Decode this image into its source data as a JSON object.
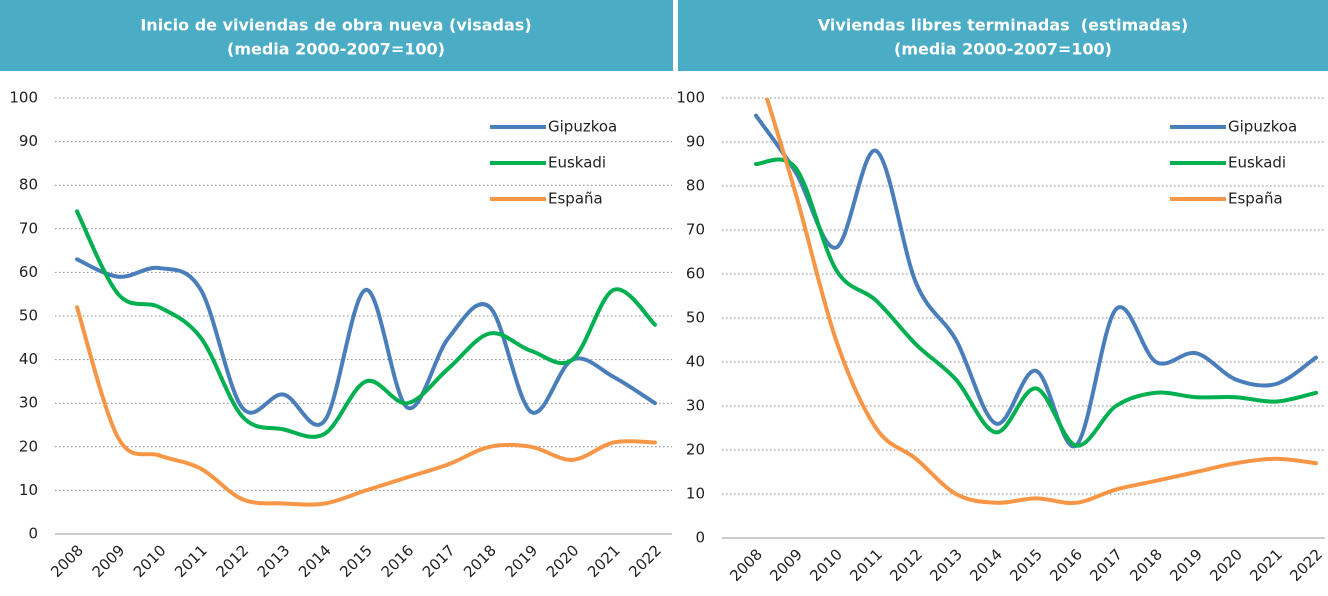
{
  "chart_data": [
    {
      "type": "line",
      "title": "Inicio de viviendas de obra nueva (visadas)",
      "subtitle": "(media 2000-2007=100)",
      "categories": [
        "2008",
        "2009",
        "2010",
        "2011",
        "2012",
        "2013",
        "2014",
        "2015",
        "2016",
        "2017",
        "2018",
        "2019",
        "2020",
        "2021",
        "2022"
      ],
      "ylim": [
        0,
        100
      ],
      "yticks": [
        0,
        10,
        20,
        30,
        40,
        50,
        60,
        70,
        80,
        90,
        100
      ],
      "grid": true,
      "legend": "top-right",
      "series": [
        {
          "name": "Gipuzkoa",
          "color": "#4a7ebb",
          "values": [
            63,
            59,
            61,
            56,
            29,
            32,
            26,
            56,
            29,
            45,
            52,
            28,
            40,
            36,
            30
          ]
        },
        {
          "name": "Euskadi",
          "color": "#00b050",
          "values": [
            74,
            55,
            52,
            45,
            27,
            24,
            23,
            35,
            30,
            38,
            46,
            42,
            40,
            56,
            48
          ]
        },
        {
          "name": "España",
          "color": "#f79646",
          "values": [
            52,
            22,
            18,
            15,
            8,
            7,
            7,
            10,
            13,
            16,
            20,
            20,
            17,
            21,
            21
          ]
        }
      ]
    },
    {
      "type": "line",
      "title": "Viviendas libres terminadas  (estimadas)",
      "subtitle": "(media 2000-2007=100)",
      "categories": [
        "2008",
        "2009",
        "2010",
        "2011",
        "2012",
        "2013",
        "2014",
        "2015",
        "2016",
        "2017",
        "2018",
        "2019",
        "2020",
        "2021",
        "2022"
      ],
      "ylim": [
        0,
        100
      ],
      "yticks": [
        0,
        10,
        20,
        30,
        40,
        50,
        60,
        70,
        80,
        90,
        100
      ],
      "grid": true,
      "legend": "top-right",
      "series": [
        {
          "name": "Gipuzkoa",
          "color": "#4a7ebb",
          "values": [
            96,
            83,
            66,
            88,
            58,
            45,
            26,
            38,
            21,
            52,
            40,
            42,
            36,
            35,
            41
          ]
        },
        {
          "name": "Euskadi",
          "color": "#00b050",
          "values": [
            85,
            84,
            61,
            54,
            44,
            36,
            24,
            34,
            21,
            30,
            33,
            32,
            32,
            31,
            33
          ]
        },
        {
          "name": "España",
          "color": "#f79646",
          "values": [
            108,
            78,
            45,
            25,
            18,
            10,
            8,
            9,
            8,
            11,
            13,
            15,
            17,
            18,
            17
          ]
        }
      ]
    }
  ]
}
